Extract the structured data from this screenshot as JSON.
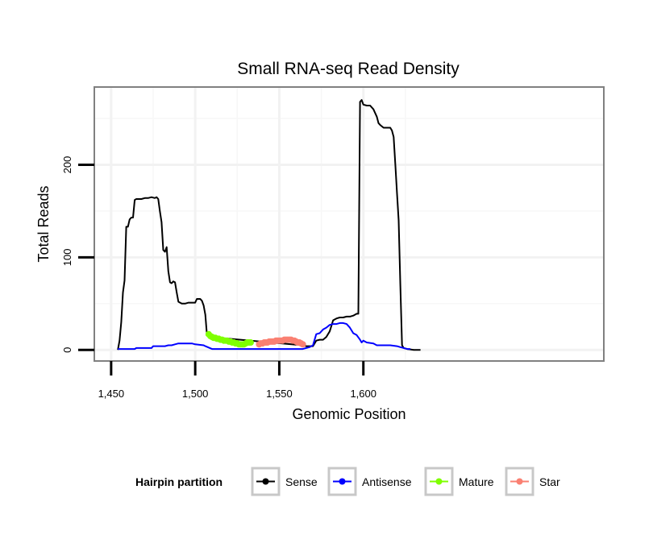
{
  "chart_data": {
    "type": "line",
    "title": "Small RNA-seq Read Density",
    "xlabel": "Genomic Position",
    "ylabel": "Total Reads",
    "xlim": [
      1440,
      1743
    ],
    "ylim": [
      -12,
      284
    ],
    "grid": true,
    "x_ticks": [
      {
        "value": 1450,
        "label": "1,450"
      },
      {
        "value": 1500,
        "label": "1,500"
      },
      {
        "value": 1550,
        "label": "1,550"
      },
      {
        "value": 1600,
        "label": "1,600"
      }
    ],
    "y_ticks": [
      {
        "value": 0,
        "label": "0"
      },
      {
        "value": 100,
        "label": "100"
      },
      {
        "value": 200,
        "label": "200"
      }
    ],
    "legend": {
      "title": "Hairpin partition",
      "placement": "bottom",
      "entries": [
        {
          "name": "Sense",
          "color": "#000000"
        },
        {
          "name": "Antisense",
          "color": "#0000ff"
        },
        {
          "name": "Mature",
          "color": "#7fff00"
        },
        {
          "name": "Star",
          "color": "#fa8072"
        }
      ]
    },
    "series": [
      {
        "name": "Sense",
        "color": "#000000",
        "marker": false,
        "x": [
          1454,
          1455,
          1456,
          1457,
          1458,
          1459,
          1460,
          1461,
          1462,
          1463,
          1464,
          1465,
          1466,
          1467,
          1468,
          1470,
          1472,
          1474,
          1476,
          1477,
          1478,
          1479,
          1480,
          1481,
          1482,
          1483,
          1484,
          1485,
          1486,
          1487,
          1488,
          1489,
          1490,
          1492,
          1494,
          1496,
          1497,
          1498,
          1500,
          1501,
          1502,
          1503,
          1504,
          1505,
          1506,
          1507,
          1508,
          1564,
          1566,
          1568,
          1570,
          1572,
          1574,
          1576,
          1578,
          1580,
          1582,
          1584,
          1586,
          1588,
          1590,
          1592,
          1594,
          1596,
          1597,
          1598,
          1599,
          1600,
          1602,
          1604,
          1606,
          1607,
          1608,
          1609,
          1610,
          1612,
          1614,
          1616,
          1617,
          1618,
          1619,
          1620,
          1621,
          1622,
          1623,
          1624,
          1626,
          1630,
          1634
        ],
        "y": [
          0,
          10,
          30,
          62,
          75,
          133,
          133,
          141,
          143,
          143,
          162,
          163,
          163,
          163,
          163,
          164,
          164,
          165,
          164,
          165,
          163,
          150,
          138,
          108,
          106,
          111,
          85,
          73,
          72,
          74,
          73,
          62,
          52,
          50,
          50,
          51,
          51,
          51,
          51,
          55,
          55,
          55,
          53,
          48,
          38,
          16,
          14,
          5,
          4,
          4,
          4,
          10,
          11,
          11,
          14,
          20,
          32,
          34,
          35,
          35,
          36,
          36,
          37,
          39,
          39,
          268,
          270,
          265,
          264,
          264,
          260,
          256,
          252,
          245,
          243,
          240,
          240,
          240,
          237,
          230,
          200,
          170,
          140,
          70,
          5,
          2,
          1,
          0,
          0
        ]
      },
      {
        "name": "Antisense",
        "color": "#0000ff",
        "marker": false,
        "x": [
          1454,
          1460,
          1464,
          1465,
          1472,
          1474,
          1475,
          1482,
          1484,
          1486,
          1488,
          1490,
          1498,
          1500,
          1505,
          1506,
          1510,
          1564,
          1566,
          1568,
          1570,
          1572,
          1574,
          1576,
          1578,
          1580,
          1582,
          1584,
          1586,
          1588,
          1590,
          1592,
          1594,
          1596,
          1598,
          1599,
          1600,
          1602,
          1606,
          1608,
          1616,
          1620,
          1622,
          1624,
          1626,
          1628
        ],
        "y": [
          1,
          1,
          1,
          2,
          2,
          2,
          4,
          4,
          5,
          5,
          6,
          7,
          7,
          6,
          5,
          4,
          1,
          1,
          2,
          3,
          5,
          17,
          18,
          22,
          24,
          27,
          28,
          28,
          29,
          29,
          28,
          24,
          18,
          16,
          11,
          8,
          10,
          8,
          7,
          5,
          5,
          4,
          3,
          2,
          1,
          1
        ]
      },
      {
        "name": "Mature",
        "color": "#7fff00",
        "marker": true,
        "x": [
          1508,
          1509,
          1510,
          1511,
          1512,
          1513,
          1514,
          1515,
          1516,
          1517,
          1518,
          1519,
          1520,
          1521,
          1522,
          1523,
          1524,
          1525,
          1526,
          1527,
          1528,
          1529,
          1530,
          1531,
          1532,
          1533
        ],
        "y": [
          17,
          15,
          14,
          13,
          13,
          12,
          12,
          11,
          11,
          10,
          10,
          10,
          9,
          9,
          8,
          8,
          7,
          7,
          6,
          6,
          6,
          6,
          7,
          8,
          8,
          8
        ]
      },
      {
        "name": "Star",
        "color": "#fa8072",
        "marker": true,
        "x": [
          1538,
          1539,
          1540,
          1541,
          1542,
          1543,
          1544,
          1545,
          1546,
          1547,
          1548,
          1549,
          1550,
          1551,
          1552,
          1553,
          1554,
          1555,
          1556,
          1557,
          1558,
          1559,
          1560,
          1561,
          1562,
          1563,
          1564
        ],
        "y": [
          6,
          7,
          7,
          8,
          8,
          8,
          9,
          9,
          9,
          9,
          10,
          10,
          10,
          10,
          10,
          11,
          11,
          11,
          11,
          11,
          10,
          10,
          9,
          8,
          8,
          7,
          6
        ]
      }
    ]
  }
}
